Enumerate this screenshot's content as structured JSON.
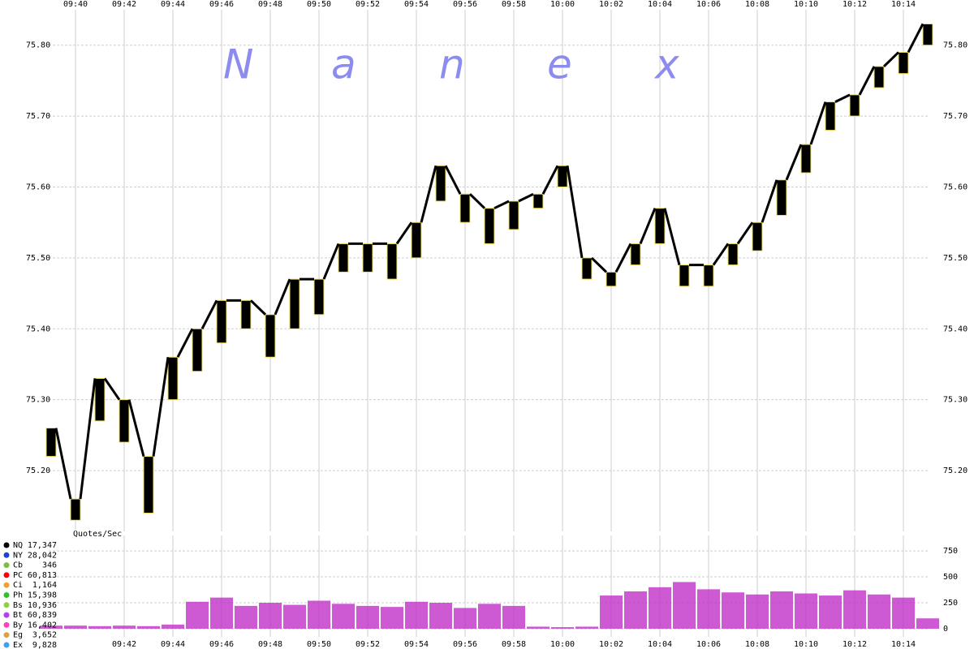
{
  "chart_data": [
    {
      "type": "band",
      "watermark": "Nanex",
      "color": "#000000",
      "edge_color": "#f0e060",
      "x": [
        "09:39",
        "09:40",
        "09:41",
        "09:42",
        "09:43",
        "09:44",
        "09:45",
        "09:46",
        "09:47",
        "09:48",
        "09:49",
        "09:50",
        "09:51",
        "09:52",
        "09:53",
        "09:54",
        "09:55",
        "09:56",
        "09:57",
        "09:58",
        "09:59",
        "10:00",
        "10:01",
        "10:02",
        "10:03",
        "10:04",
        "10:05",
        "10:06",
        "10:07",
        "10:08",
        "10:09",
        "10:10",
        "10:11",
        "10:12",
        "10:13",
        "10:14",
        "10:15"
      ],
      "low": [
        75.22,
        75.13,
        75.27,
        75.24,
        75.14,
        75.3,
        75.34,
        75.38,
        75.4,
        75.36,
        75.4,
        75.42,
        75.48,
        75.48,
        75.47,
        75.5,
        75.58,
        75.55,
        75.52,
        75.54,
        75.57,
        75.6,
        75.47,
        75.46,
        75.49,
        75.52,
        75.46,
        75.46,
        75.49,
        75.51,
        75.56,
        75.62,
        75.68,
        75.7,
        75.74,
        75.76,
        75.8
      ],
      "high": [
        75.26,
        75.16,
        75.33,
        75.3,
        75.22,
        75.36,
        75.4,
        75.44,
        75.44,
        75.42,
        75.47,
        75.47,
        75.52,
        75.52,
        75.52,
        75.55,
        75.63,
        75.59,
        75.57,
        75.58,
        75.59,
        75.63,
        75.5,
        75.48,
        75.52,
        75.57,
        75.49,
        75.49,
        75.52,
        75.55,
        75.61,
        75.66,
        75.72,
        75.73,
        75.77,
        75.79,
        75.83
      ],
      "xlim": [
        "09:39",
        "10:15"
      ],
      "ylim": [
        75.12,
        75.85
      ],
      "xticks": [
        "09:40",
        "09:42",
        "09:44",
        "09:46",
        "09:48",
        "09:50",
        "09:52",
        "09:54",
        "09:56",
        "09:58",
        "10:00",
        "10:02",
        "10:04",
        "10:06",
        "10:08",
        "10:10",
        "10:12",
        "10:14"
      ],
      "yticks": [
        {
          "value": 75.2,
          "label": "75.20"
        },
        {
          "value": 75.3,
          "label": "75.30"
        },
        {
          "value": 75.4,
          "label": "75.40"
        },
        {
          "value": 75.5,
          "label": "75.50"
        },
        {
          "value": 75.6,
          "label": "75.60"
        },
        {
          "value": 75.7,
          "label": "75.70"
        },
        {
          "value": 75.8,
          "label": "75.80"
        }
      ],
      "grid": true
    },
    {
      "type": "bar",
      "y_label": "Quotes/Sec",
      "color": "#c030c8",
      "x": [
        "09:39",
        "09:40",
        "09:41",
        "09:42",
        "09:43",
        "09:44",
        "09:45",
        "09:46",
        "09:47",
        "09:48",
        "09:49",
        "09:50",
        "09:51",
        "09:52",
        "09:53",
        "09:54",
        "09:55",
        "09:56",
        "09:57",
        "09:58",
        "09:59",
        "10:00",
        "10:01",
        "10:02",
        "10:03",
        "10:04",
        "10:05",
        "10:06",
        "10:07",
        "10:08",
        "10:09",
        "10:10",
        "10:11",
        "10:12",
        "10:13",
        "10:14",
        "10:15"
      ],
      "values": [
        30,
        30,
        25,
        30,
        25,
        40,
        260,
        300,
        220,
        250,
        230,
        270,
        240,
        220,
        210,
        260,
        250,
        200,
        240,
        220,
        20,
        15,
        20,
        320,
        360,
        400,
        450,
        380,
        350,
        330,
        360,
        340,
        320,
        370,
        330,
        300,
        100
      ],
      "xlim": [
        "09:39",
        "10:15"
      ],
      "ylim": [
        0,
        860
      ],
      "xticks": [
        "09:42",
        "09:44",
        "09:46",
        "09:48",
        "09:50",
        "09:52",
        "09:54",
        "09:56",
        "09:58",
        "10:00",
        "10:02",
        "10:04",
        "10:06",
        "10:08",
        "10:10",
        "10:12",
        "10:14"
      ],
      "yticks": [
        0,
        250,
        500,
        750
      ],
      "grid": true,
      "legend": [
        {
          "name": "NQ",
          "color": "#000000",
          "total": 17347,
          "label": "17,347"
        },
        {
          "name": "NY",
          "color": "#1f3fd8",
          "total": 28042,
          "label": "28,042"
        },
        {
          "name": "Cb",
          "color": "#7fbf3f",
          "total": 346,
          "label": "346"
        },
        {
          "name": "PC",
          "color": "#ff0000",
          "total": 60813,
          "label": "60,813"
        },
        {
          "name": "Ci",
          "color": "#f0a030",
          "total": 1164,
          "label": "1,164"
        },
        {
          "name": "Ph",
          "color": "#30c030",
          "total": 15398,
          "label": "15,398"
        },
        {
          "name": "Bs",
          "color": "#90d040",
          "total": 10936,
          "label": "10,936"
        },
        {
          "name": "Bt",
          "color": "#b040f0",
          "total": 60839,
          "label": "60,839"
        },
        {
          "name": "By",
          "color": "#ff40c0",
          "total": 16402,
          "label": "16,402"
        },
        {
          "name": "Eg",
          "color": "#e0a040",
          "total": 3652,
          "label": "3,652"
        },
        {
          "name": "Ex",
          "color": "#40a0f0",
          "total": 9828,
          "label": "9,828"
        }
      ]
    }
  ]
}
